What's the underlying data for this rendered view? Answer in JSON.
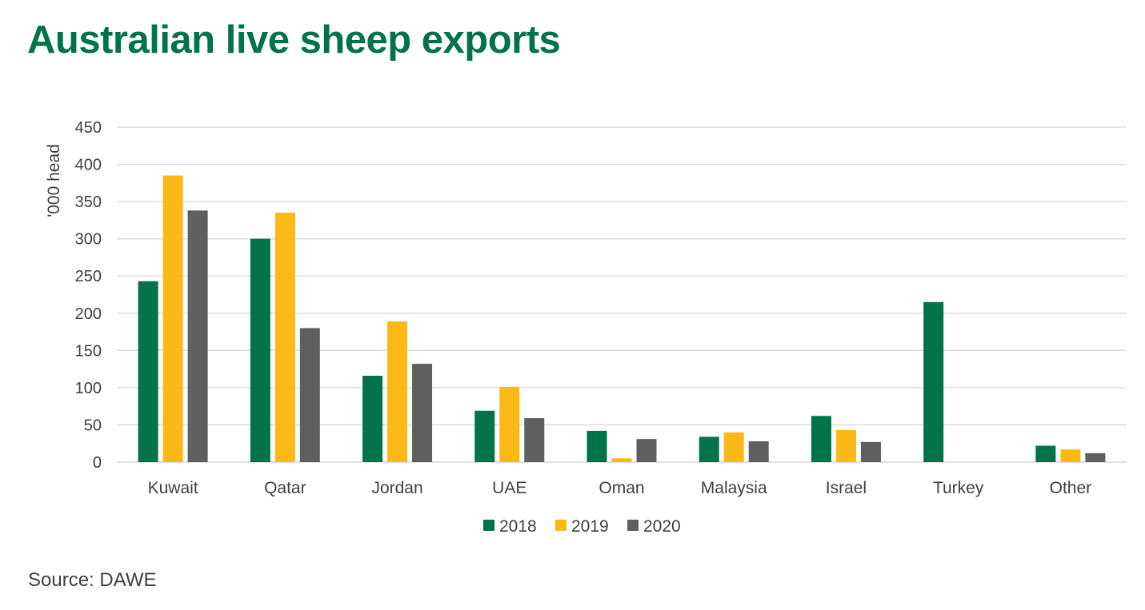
{
  "header": {
    "title": "Australian live sheep exports"
  },
  "footer": {
    "source": "Source: DAWE"
  },
  "colors": {
    "title": "#00734A",
    "series_2018": "#00734A",
    "series_2019": "#FBB917",
    "series_2020": "#5F5F5F",
    "gridline": "#D9D9D9",
    "text": "#404040"
  },
  "chart_data": {
    "type": "bar",
    "title": "Australian live sheep exports",
    "xlabel": "",
    "ylabel": "'000 head",
    "ylim": [
      0,
      450
    ],
    "yticks": [
      0,
      50,
      100,
      150,
      200,
      250,
      300,
      350,
      400,
      450
    ],
    "grid": true,
    "legend_position": "bottom",
    "categories": [
      "Kuwait",
      "Qatar",
      "Jordan",
      "UAE",
      "Oman",
      "Malaysia",
      "Israel",
      "Turkey",
      "Other"
    ],
    "series": [
      {
        "name": "2018",
        "color": "#00734A",
        "values": [
          243,
          300,
          116,
          69,
          42,
          34,
          62,
          215,
          22
        ]
      },
      {
        "name": "2019",
        "color": "#FBB917",
        "values": [
          385,
          335,
          189,
          101,
          5,
          40,
          43,
          0,
          17
        ]
      },
      {
        "name": "2020",
        "color": "#5F5F5F",
        "values": [
          338,
          180,
          132,
          59,
          31,
          28,
          27,
          0,
          12
        ]
      }
    ]
  }
}
